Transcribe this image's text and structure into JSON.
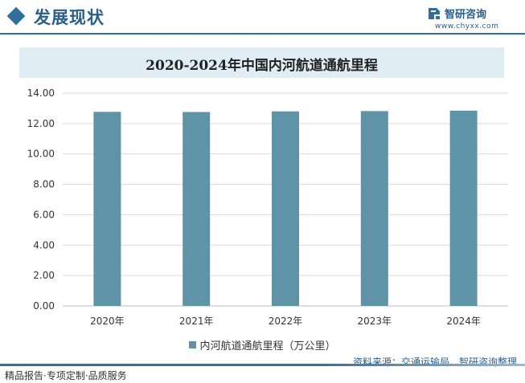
{
  "header": {
    "title": "发展现状",
    "brand_name": "智研咨询",
    "brand_url": "www.chyxx.com"
  },
  "colors": {
    "accent": "#2f6f9a",
    "bar": "#5f93a8",
    "title_band": "#e1edf4",
    "grid": "#d9d9d9"
  },
  "chart_data": {
    "type": "bar",
    "title": "2020-2024年中国内河航道通航里程",
    "categories": [
      "2020年",
      "2021年",
      "2022年",
      "2023年",
      "2024年"
    ],
    "series": [
      {
        "name": "内河航道通航里程（万公里）",
        "values": [
          12.77,
          12.76,
          12.8,
          12.82,
          12.85
        ]
      }
    ],
    "ylim": [
      0,
      14
    ],
    "yticks": [
      "0.00",
      "2.00",
      "4.00",
      "6.00",
      "8.00",
      "10.00",
      "12.00",
      "14.00"
    ],
    "grid": true,
    "legend": "bottom"
  },
  "source": "资料来源：交通运输局、智研咨询整理",
  "footer": "精品报告·专项定制·品质服务"
}
